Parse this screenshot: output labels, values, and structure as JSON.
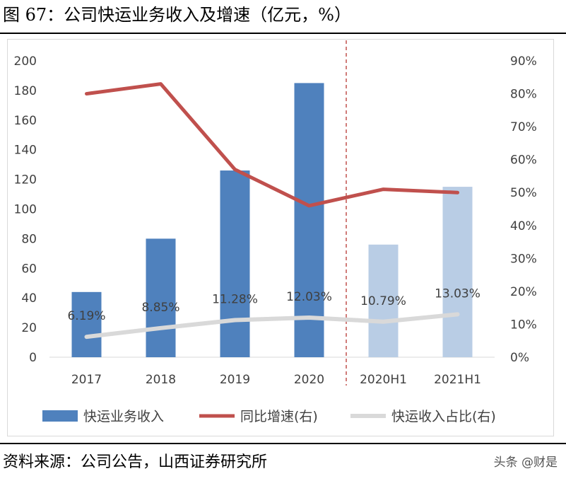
{
  "title": "图 67：公司快运业务收入及增速（亿元，%）",
  "source": "资料来源：公司公告，山西证券研究所",
  "watermark": "头条 @财是",
  "colors": {
    "bar_actual": "#4f81bd",
    "bar_half": "#b9cde5",
    "growth_line": "#c0504d",
    "share_line": "#d9d9d9",
    "divider": "#c0504d",
    "axis_text": "#404040"
  },
  "chart_data": {
    "type": "bar",
    "categories": [
      "2017",
      "2018",
      "2019",
      "2020",
      "2020H1",
      "2021H1"
    ],
    "ylim": [
      0,
      200
    ],
    "y_ticks": [
      "0",
      "20",
      "40",
      "60",
      "80",
      "100",
      "120",
      "140",
      "160",
      "180",
      "200"
    ],
    "y2lim": [
      0,
      0.9
    ],
    "y2_ticks": [
      "0%",
      "10%",
      "20%",
      "30%",
      "40%",
      "50%",
      "60%",
      "70%",
      "80%",
      "90%"
    ],
    "divider_after_index": 3,
    "series": [
      {
        "name": "快运业务收入",
        "type": "bar",
        "axis": "left",
        "values": [
          44,
          80,
          126,
          185,
          76,
          115
        ]
      },
      {
        "name": "同比增速(右)",
        "type": "line",
        "axis": "right",
        "values": [
          0.8,
          0.83,
          0.57,
          0.46,
          0.51,
          0.5
        ]
      },
      {
        "name": "快运收入占比(右)",
        "type": "line",
        "axis": "right",
        "values": [
          0.0619,
          0.0885,
          0.1128,
          0.1203,
          0.1079,
          0.1303
        ],
        "labels": [
          "6.19%",
          "8.85%",
          "11.28%",
          "12.03%",
          "10.79%",
          "13.03%"
        ]
      }
    ],
    "legend": "bottom"
  }
}
